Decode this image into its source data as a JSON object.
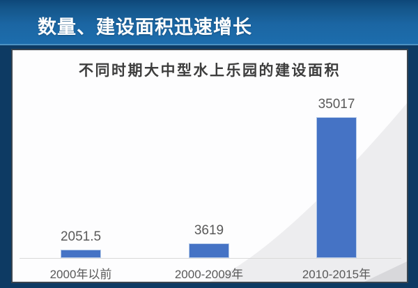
{
  "banner": {
    "title": "数量、建设面积迅速增长"
  },
  "colors": {
    "banner_blue": "#1b66a3",
    "banner_underline": "#4d92c3",
    "page_background": "#0d3a63",
    "panel_border": "#3a4550",
    "bar_fill": "#4573c5",
    "wedge_gray": "#ededef",
    "wedge_corner_gray": "#d8d8db",
    "axis_line": "#d9d9d9",
    "label_gray": "#595959",
    "chart_title_gray": "#3d3d3d"
  },
  "chart_data": {
    "type": "bar",
    "title": "不同时期大中型水上乐园的建设面积",
    "categories": [
      "2000年以前",
      "2000-2009年",
      "2010-2015年"
    ],
    "values": [
      2051.5,
      3619,
      35017
    ],
    "value_labels": [
      "2051.5",
      "3619",
      "35017"
    ],
    "xlabel": "",
    "ylabel": "",
    "ylim": [
      0,
      35017
    ],
    "grid": false,
    "legend": null,
    "bar_color": "#4573c5",
    "background_accent": "light-gray diagonal wedge rising to upper right"
  }
}
